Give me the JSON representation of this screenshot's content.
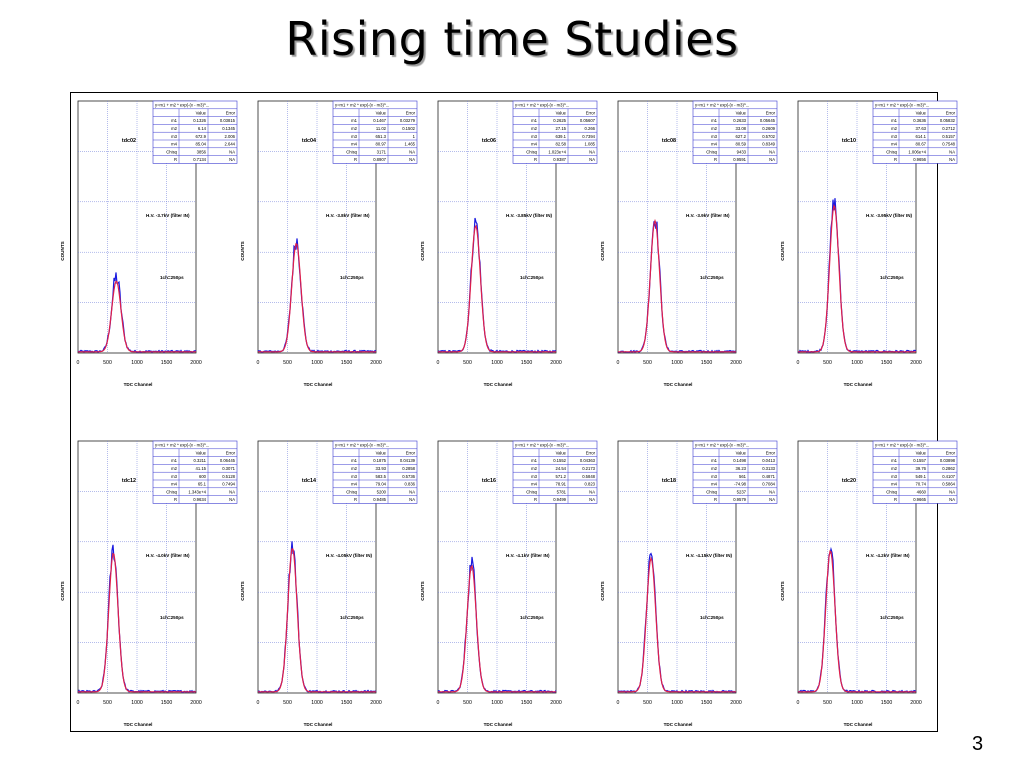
{
  "slide": {
    "title": "Rising time Studies",
    "page_number": "3"
  },
  "chart_data": [
    {
      "type": "line",
      "label": "tdc02",
      "hv": "H.V. -3.7kV (filter IN)",
      "bin_note": "1ch=250ps",
      "xlabel": "TDC Channel",
      "ylabel": "COUNTS",
      "xlim": [
        0,
        2000
      ],
      "x_ticks": [
        "0",
        "500",
        "1000",
        "1500",
        "2000"
      ],
      "peak_x": 650,
      "peak_level": 0.28,
      "fit_box": {
        "formula": "y=m1 + m2 * exp(-(x - m3)^...",
        "cols": [
          "",
          "Value",
          "Error"
        ],
        "rows": [
          [
            "m1",
            "0.1326",
            "0.03815"
          ],
          [
            "m2",
            "6.14",
            "0.1345"
          ],
          [
            "m3",
            "672.9",
            "2.006"
          ],
          [
            "m4",
            "85.04",
            "2.644"
          ],
          [
            "Chisq",
            "3856",
            "NA"
          ],
          [
            "R",
            "0.7134",
            "NA"
          ]
        ]
      }
    },
    {
      "type": "line",
      "label": "tdc04",
      "hv": "H.V. -3.8kV (filter IN)",
      "bin_note": "1ch=250ps",
      "xlabel": "TDC Channel",
      "ylabel": "COUNTS",
      "xlim": [
        0,
        2000
      ],
      "x_ticks": [
        "0",
        "500",
        "1000",
        "1500",
        "2000"
      ],
      "peak_x": 650,
      "peak_level": 0.43,
      "fit_box": {
        "formula": "y=m1 + m2 * exp(-(x - m3)^...",
        "cols": [
          "",
          "Value",
          "Error"
        ],
        "rows": [
          [
            "m1",
            "0.1467",
            "0.03279"
          ],
          [
            "m2",
            "11.02",
            "0.1502"
          ],
          [
            "m3",
            "651.3",
            "1"
          ],
          [
            "m4",
            "80.97",
            "1.465"
          ],
          [
            "Chisq",
            "3171",
            "NA"
          ],
          [
            "R",
            "0.8907",
            "NA"
          ]
        ]
      }
    },
    {
      "type": "line",
      "label": "tdc06",
      "hv": "H.V. -3.85kV (filter IN)",
      "bin_note": "1ch=250ps",
      "xlabel": "TDC Channel",
      "ylabel": "COUNTS",
      "xlim": [
        0,
        2000
      ],
      "x_ticks": [
        "0",
        "500",
        "1000",
        "1500",
        "2000"
      ],
      "peak_x": 640,
      "peak_level": 0.5,
      "fit_box": {
        "formula": "y=m1 + m2 * exp(-(x - m3)^...",
        "cols": [
          "",
          "Value",
          "Error"
        ],
        "rows": [
          [
            "m1",
            "0.2625",
            "0.05607"
          ],
          [
            "m2",
            "27.15",
            "0.266"
          ],
          [
            "m3",
            "639.1",
            "0.7394"
          ],
          [
            "m4",
            "82.58",
            "1.085"
          ],
          [
            "Chisq",
            "1.023e+4",
            "NA"
          ],
          [
            "R",
            "0.9387",
            "NA"
          ]
        ]
      }
    },
    {
      "type": "line",
      "label": "tdc08",
      "hv": "H.V. -3.9kV (filter IN)",
      "bin_note": "1ch=250ps",
      "xlabel": "TDC Channel",
      "ylabel": "COUNTS",
      "xlim": [
        0,
        2000
      ],
      "x_ticks": [
        "0",
        "500",
        "1000",
        "1500",
        "2000"
      ],
      "peak_x": 627,
      "peak_level": 0.52,
      "fit_box": {
        "formula": "y=m1 + m2 * exp(-(x - m3)^...",
        "cols": [
          "",
          "Value",
          "Error"
        ],
        "rows": [
          [
            "m1",
            "0.2633",
            "0.05645"
          ],
          [
            "m2",
            "33.08",
            "0.2609"
          ],
          [
            "m3",
            "627.2",
            "0.5702"
          ],
          [
            "m4",
            "80.59",
            "0.8349"
          ],
          [
            "Chisq",
            "9433",
            "NA"
          ],
          [
            "R",
            "0.9591",
            "NA"
          ]
        ]
      }
    },
    {
      "type": "line",
      "label": "tdc10",
      "hv": "H.V. -3.95kV (filter IN)",
      "bin_note": "1ch=250ps",
      "xlabel": "TDC Channel",
      "ylabel": "COUNTS",
      "xlim": [
        0,
        2000
      ],
      "x_ticks": [
        "0",
        "500",
        "1000",
        "1500",
        "2000"
      ],
      "peak_x": 614,
      "peak_level": 0.58,
      "fit_box": {
        "formula": "y=m1 + m2 * exp(-(x - m3)^...",
        "cols": [
          "",
          "Value",
          "Error"
        ],
        "rows": [
          [
            "m1",
            "0.3636",
            "0.05832"
          ],
          [
            "m2",
            "37.63",
            "0.2712"
          ],
          [
            "m3",
            "614.1",
            "0.5157"
          ],
          [
            "m4",
            "80.67",
            "0.7548"
          ],
          [
            "Chisq",
            "1.006e+4",
            "NA"
          ],
          [
            "R",
            "0.9656",
            "NA"
          ]
        ]
      }
    },
    {
      "type": "line",
      "label": "tdc12",
      "hv": "H.V. -4.0kV (filter IN)",
      "bin_note": "1ch=250ps",
      "xlabel": "TDC Channel",
      "ylabel": "COUNTS",
      "xlim": [
        0,
        2000
      ],
      "x_ticks": [
        "0",
        "500",
        "1000",
        "1500",
        "2000"
      ],
      "peak_x": 600,
      "peak_level": 0.55,
      "fit_box": {
        "formula": "y=m1 + m2 * exp(-(x - m3)^...",
        "cols": [
          "",
          "Value",
          "Error"
        ],
        "rows": [
          [
            "m1",
            "0.3211",
            "0.06445"
          ],
          [
            "m2",
            "41.15",
            "0.3071"
          ],
          [
            "m3",
            "600",
            "0.5128"
          ],
          [
            "m4",
            "65.1",
            "0.7494"
          ],
          [
            "Chisq",
            "1.343e+4",
            "NA"
          ],
          [
            "R",
            "0.9634",
            "NA"
          ]
        ]
      }
    },
    {
      "type": "line",
      "label": "tdc14",
      "hv": "H.V. -4.05kV (filter IN)",
      "bin_note": "1ch=250ps",
      "xlabel": "TDC Channel",
      "ylabel": "COUNTS",
      "xlim": [
        0,
        2000
      ],
      "x_ticks": [
        "0",
        "500",
        "1000",
        "1500",
        "2000"
      ],
      "peak_x": 584,
      "peak_level": 0.57,
      "fit_box": {
        "formula": "y=m1 + m2 * exp(-(x - m3)^...",
        "cols": [
          "",
          "Value",
          "Error"
        ],
        "rows": [
          [
            "m1",
            "0.1875",
            "0.04139"
          ],
          [
            "m2",
            "33.93",
            "0.2858"
          ],
          [
            "m3",
            "583.5",
            "0.5736"
          ],
          [
            "m4",
            "79.04",
            "0.836"
          ],
          [
            "Chisq",
            "5200",
            "NA"
          ],
          [
            "R",
            "0.9485",
            "NA"
          ]
        ]
      }
    },
    {
      "type": "line",
      "label": "tdc16",
      "hv": "H.V. -4.1kV (filter IN)",
      "bin_note": "1ch=250ps",
      "xlabel": "TDC Channel",
      "ylabel": "COUNTS",
      "xlim": [
        0,
        2000
      ],
      "x_ticks": [
        "0",
        "500",
        "1000",
        "1500",
        "2000"
      ],
      "peak_x": 571,
      "peak_level": 0.5,
      "fit_box": {
        "formula": "y=m1 + m2 * exp(-(x - m3)^...",
        "cols": [
          "",
          "Value",
          "Error"
        ],
        "rows": [
          [
            "m1",
            "0.1552",
            "0.04363"
          ],
          [
            "m2",
            "24.54",
            "0.2173"
          ],
          [
            "m3",
            "571.2",
            "0.5848"
          ],
          [
            "m4",
            "78.91",
            "0.823"
          ],
          [
            "Chisq",
            "5781",
            "NA"
          ],
          [
            "R",
            "0.9499",
            "NA"
          ]
        ]
      }
    },
    {
      "type": "line",
      "label": "tdc18",
      "hv": "H.V. -4.15kV (filter IN)",
      "bin_note": "1ch=250ps",
      "xlabel": "TDC Channel",
      "ylabel": "COUNTS",
      "xlim": [
        0,
        2000
      ],
      "x_ticks": [
        "0",
        "500",
        "1000",
        "1500",
        "2000"
      ],
      "peak_x": 561,
      "peak_level": 0.53,
      "fit_box": {
        "formula": "y=m1 + m2 * exp(-(x - m3)^...",
        "cols": [
          "",
          "Value",
          "Error"
        ],
        "rows": [
          [
            "m1",
            "0.1498",
            "0.0413"
          ],
          [
            "m2",
            "36.23",
            "0.3133"
          ],
          [
            "m3",
            "561",
            "0.4871"
          ],
          [
            "m4",
            "-74.98",
            "0.7084"
          ],
          [
            "Chisq",
            "5237",
            "NA"
          ],
          [
            "R",
            "0.9579",
            "NA"
          ]
        ]
      }
    },
    {
      "type": "line",
      "label": "tdc20",
      "hv": "H.V. -4.2kV (filter IN)",
      "bin_note": "1ch=250ps",
      "xlabel": "TDC Channel",
      "ylabel": "COUNTS",
      "xlim": [
        0,
        2000
      ],
      "x_ticks": [
        "0",
        "500",
        "1000",
        "1500",
        "2000"
      ],
      "peak_x": 549,
      "peak_level": 0.56,
      "fit_box": {
        "formula": "y=m1 + m2 * exp(-(x - m3)^...",
        "cols": [
          "",
          "Value",
          "Error"
        ],
        "rows": [
          [
            "m1",
            "0.1557",
            "0.03898"
          ],
          [
            "m2",
            "39.76",
            "0.2862"
          ],
          [
            "m3",
            "549.1",
            "0.4107"
          ],
          [
            "m4",
            "70.74",
            "0.5864"
          ],
          [
            "Chisq",
            "4660",
            "NA"
          ],
          [
            "R",
            "0.9665",
            "NA"
          ]
        ]
      }
    }
  ]
}
